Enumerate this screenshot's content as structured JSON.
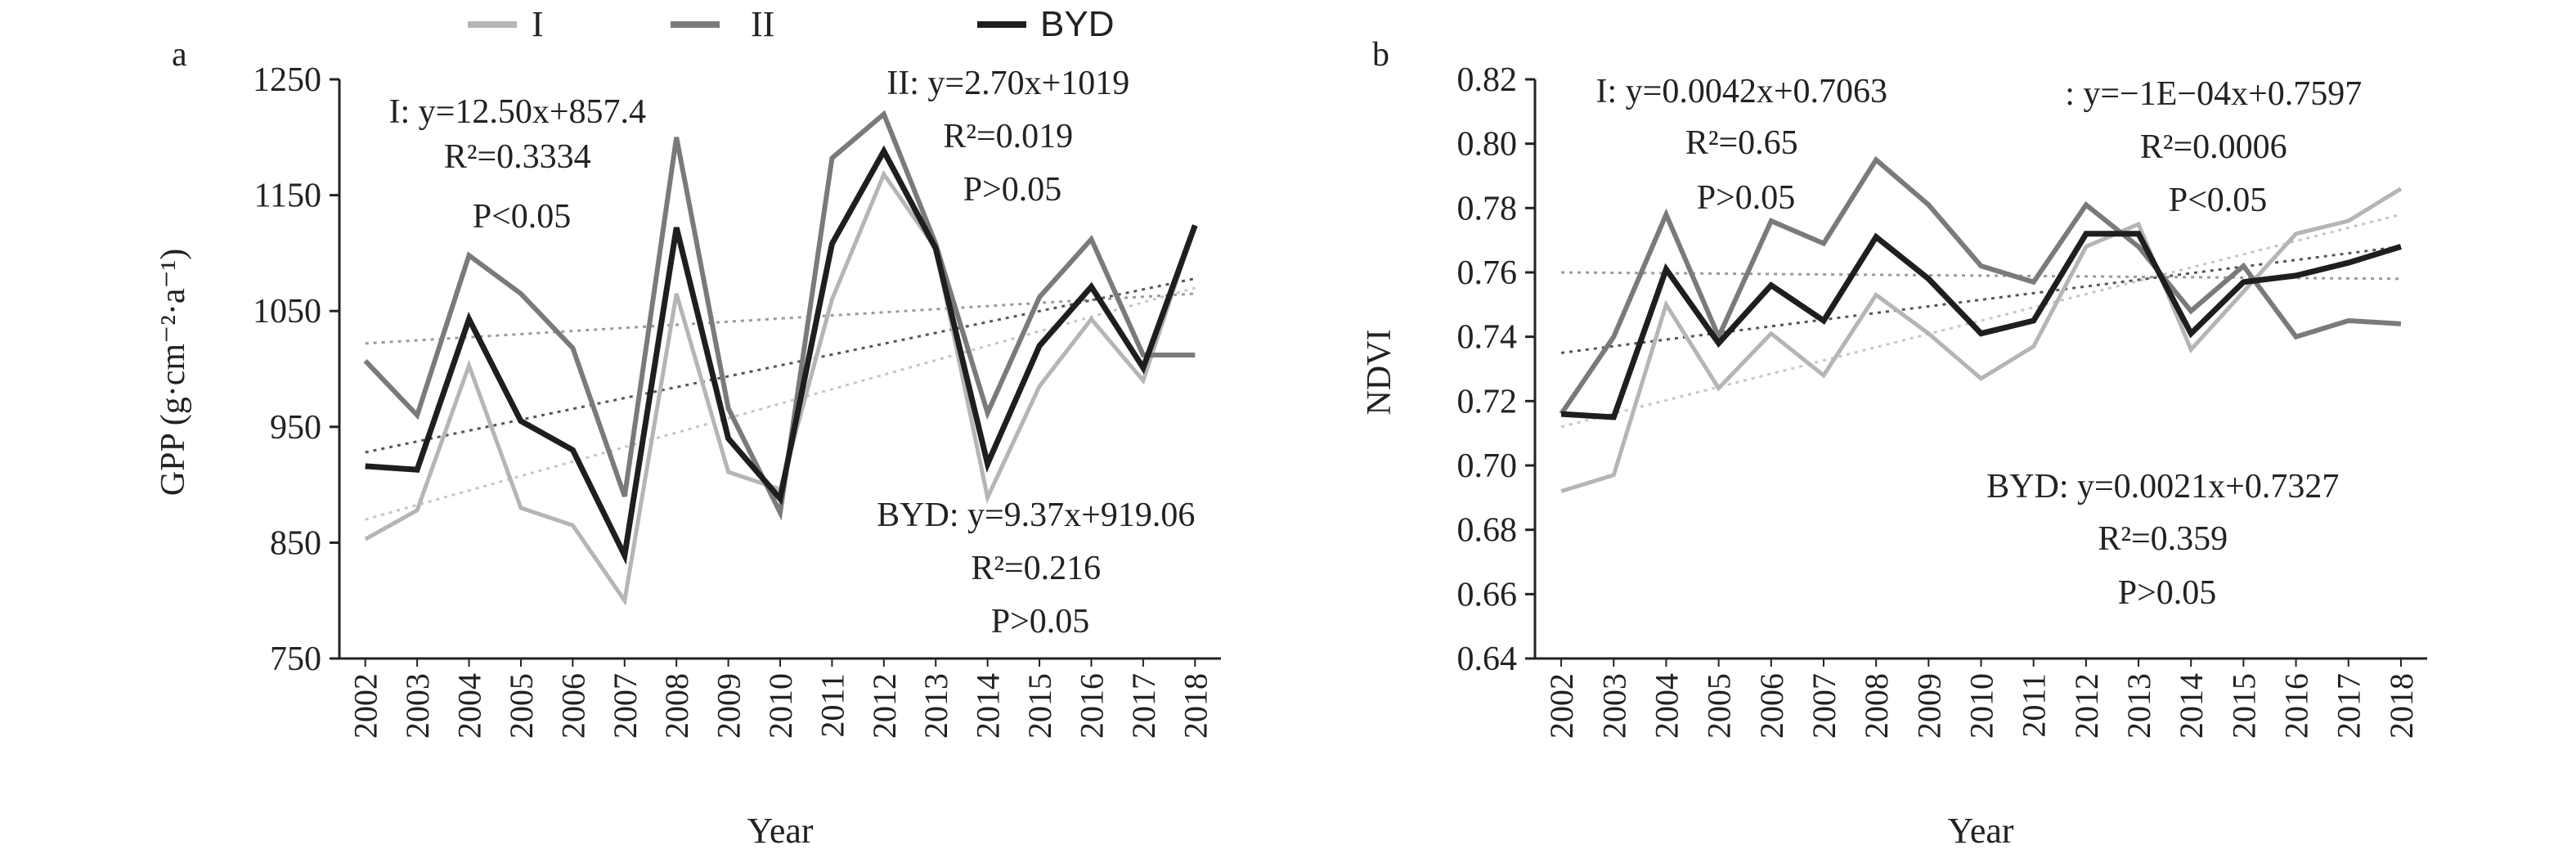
{
  "legend": {
    "items": [
      {
        "label": "I",
        "color": "#b5b5b5"
      },
      {
        "label": "II",
        "color": "#7a7a7a"
      },
      {
        "label": "BYD",
        "color": "#1e1e1e"
      }
    ]
  },
  "chart_data": [
    {
      "panel_label": "a",
      "type": "line",
      "categories": [
        "2002",
        "2003",
        "2004",
        "2005",
        "2006",
        "2007",
        "2008",
        "2009",
        "2010",
        "2011",
        "2012",
        "2013",
        "2014",
        "2015",
        "2016",
        "2017",
        "2018"
      ],
      "ylabel": "GPP (g·cm⁻²·a⁻¹)",
      "xlabel": "Year",
      "ylim": [
        750,
        1250
      ],
      "yticks": [
        "750",
        "850",
        "950",
        "1050",
        "1150",
        "1250"
      ],
      "grid": false,
      "series": [
        {
          "name": "I",
          "values": [
            853,
            878,
            1003,
            880,
            865,
            800,
            1065,
            911,
            896,
            1060,
            1168,
            1104,
            889,
            985,
            1043,
            990,
            1124
          ]
        },
        {
          "name": "II",
          "values": [
            1007,
            960,
            1098,
            1065,
            1018,
            890,
            1200,
            966,
            876,
            1182,
            1220,
            1108,
            962,
            1062,
            1112,
            1012,
            1012
          ]
        },
        {
          "name": "BYD",
          "values": [
            916,
            913,
            1043,
            955,
            930,
            839,
            1122,
            940,
            888,
            1108,
            1188,
            1104,
            918,
            1020,
            1071,
            1001,
            1124
          ]
        }
      ],
      "trendlines": [
        {
          "series": "I",
          "from": 870,
          "to": 1070
        },
        {
          "series": "II",
          "from": 1022,
          "to": 1065
        },
        {
          "series": "BYD",
          "from": 928,
          "to": 1078
        }
      ],
      "annotations": [
        {
          "lines": [
            "I: y=12.50x+857.4",
            "R²=0.3334",
            "P<0.05"
          ]
        },
        {
          "lines": [
            "II: y=2.70x+1019",
            "R²=0.019",
            "P>0.05"
          ]
        },
        {
          "lines": [
            "BYD: y=9.37x+919.06",
            "R²=0.216",
            "P>0.05"
          ]
        }
      ]
    },
    {
      "panel_label": "b",
      "type": "line",
      "categories": [
        "2002",
        "2003",
        "2004",
        "2005",
        "2006",
        "2007",
        "2008",
        "2009",
        "2010",
        "2011",
        "2012",
        "2013",
        "2014",
        "2015",
        "2016",
        "2017",
        "2018"
      ],
      "ylabel": "NDVI",
      "xlabel": "Year",
      "ylim": [
        0.64,
        0.82
      ],
      "yticks": [
        "0.64",
        "0.66",
        "0.68",
        "0.70",
        "0.72",
        "0.74",
        "0.76",
        "0.78",
        "0.80",
        "0.82"
      ],
      "grid": false,
      "series": [
        {
          "name": "I",
          "values": [
            0.692,
            0.697,
            0.75,
            0.724,
            0.741,
            0.728,
            0.753,
            0.741,
            0.727,
            0.737,
            0.768,
            0.775,
            0.736,
            0.754,
            0.772,
            0.776,
            0.786
          ]
        },
        {
          "name": "II",
          "values": [
            0.716,
            0.74,
            0.778,
            0.74,
            0.776,
            0.769,
            0.795,
            0.781,
            0.762,
            0.757,
            0.781,
            0.768,
            0.748,
            0.762,
            0.74,
            0.745,
            0.744
          ]
        },
        {
          "name": "BYD",
          "values": [
            0.716,
            0.715,
            0.761,
            0.738,
            0.756,
            0.745,
            0.771,
            0.758,
            0.741,
            0.745,
            0.772,
            0.772,
            0.741,
            0.757,
            0.759,
            0.763,
            0.768
          ]
        }
      ],
      "trendlines": [
        {
          "series": "I",
          "from": 0.712,
          "to": 0.778
        },
        {
          "series": "II",
          "from": 0.76,
          "to": 0.758
        },
        {
          "series": "BYD",
          "from": 0.735,
          "to": 0.768
        }
      ],
      "annotations": [
        {
          "lines": [
            "I: y=0.0042x+0.7063",
            "R²=0.65",
            "P>0.05"
          ]
        },
        {
          "lines": [
            ": y=−1E−04x+0.7597",
            "R²=0.0006",
            "P<0.05"
          ]
        },
        {
          "lines": [
            "BYD: y=0.0021x+0.7327",
            "R²=0.359",
            "P>0.05"
          ]
        }
      ]
    }
  ]
}
